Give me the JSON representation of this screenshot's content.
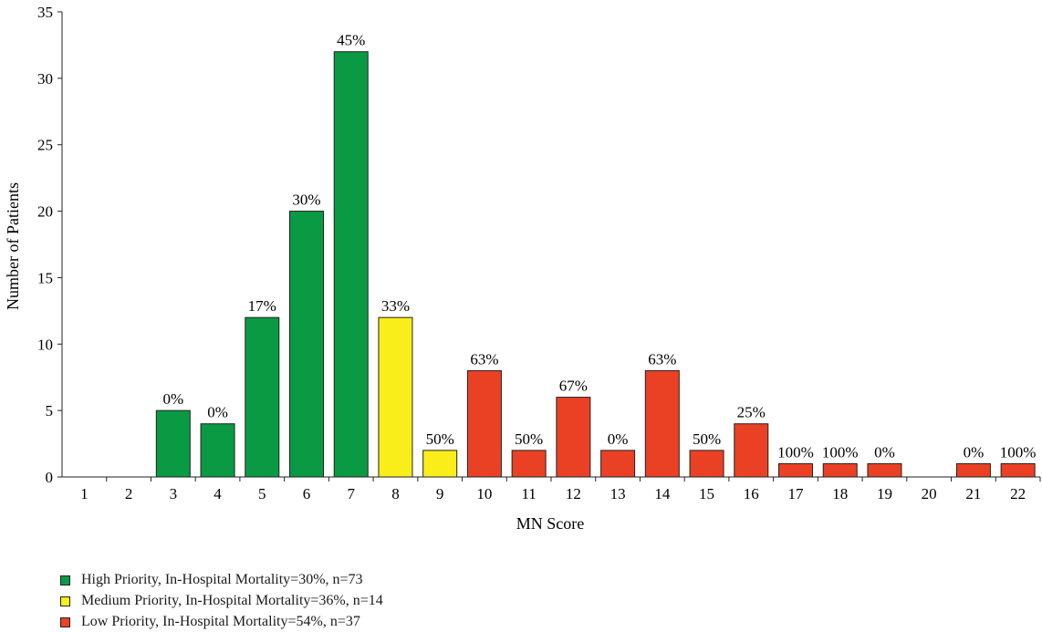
{
  "chart_data": {
    "type": "bar",
    "xlabel": "MN Score",
    "ylabel": "Number of Patients",
    "ylim": [
      0,
      35
    ],
    "yticks": [
      0,
      5,
      10,
      15,
      20,
      25,
      30,
      35
    ],
    "categories": [
      "1",
      "2",
      "3",
      "4",
      "5",
      "6",
      "7",
      "8",
      "9",
      "10",
      "11",
      "12",
      "13",
      "14",
      "15",
      "16",
      "17",
      "18",
      "19",
      "20",
      "21",
      "22"
    ],
    "values": [
      0,
      0,
      5,
      4,
      12,
      20,
      32,
      12,
      2,
      8,
      2,
      6,
      2,
      8,
      2,
      4,
      1,
      1,
      1,
      0,
      1,
      1
    ],
    "data_labels": [
      "",
      "",
      "0%",
      "0%",
      "17%",
      "30%",
      "45%",
      "33%",
      "50%",
      "63%",
      "50%",
      "67%",
      "0%",
      "63%",
      "50%",
      "25%",
      "100%",
      "100%",
      "0%",
      "",
      "0%",
      "100%"
    ],
    "bar_groups": [
      "",
      "",
      "high",
      "high",
      "high",
      "high",
      "high",
      "medium",
      "medium",
      "low",
      "low",
      "low",
      "low",
      "low",
      "low",
      "low",
      "low",
      "low",
      "low",
      "",
      "low",
      "low"
    ],
    "grid": false,
    "legend_position": "bottom-left"
  },
  "colors": {
    "high": "#0a9a44",
    "medium": "#f9ee1a",
    "low": "#ea4125",
    "axis": "#222222"
  },
  "legend": [
    {
      "key": "high",
      "label": "High Priority, In-Hospital Mortality=30%, n=73"
    },
    {
      "key": "medium",
      "label": "Medium Priority, In-Hospital Mortality=36%, n=14"
    },
    {
      "key": "low",
      "label": "Low Priority, In-Hospital Mortality=54%, n=37"
    }
  ]
}
